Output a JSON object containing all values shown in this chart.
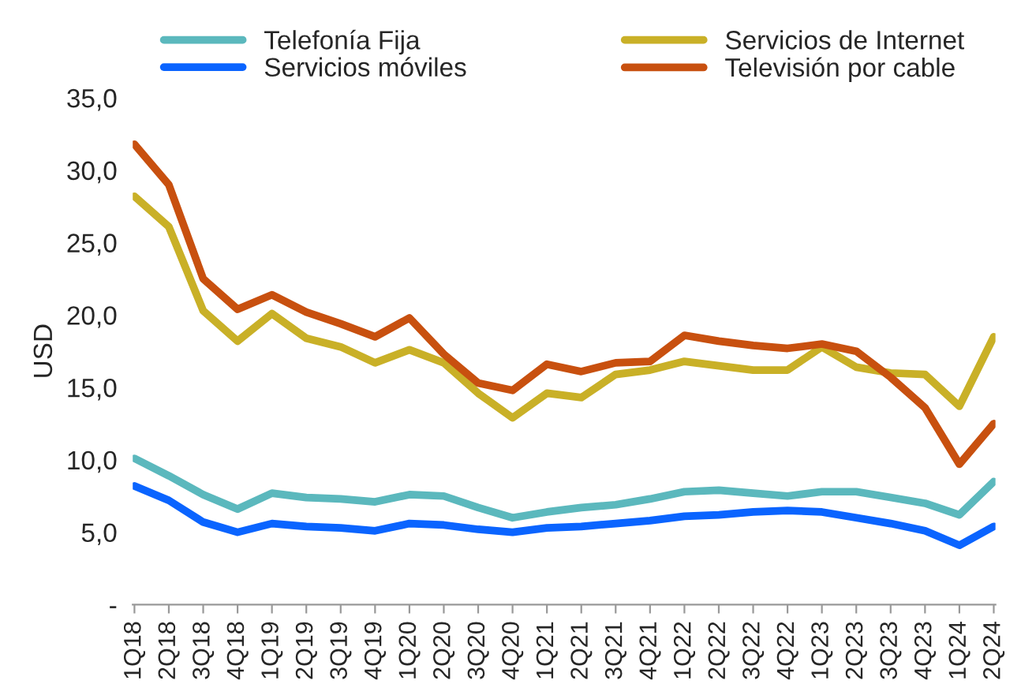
{
  "chart_data": {
    "type": "line",
    "ylabel": "USD",
    "categories": [
      "1Q18",
      "2Q18",
      "3Q18",
      "4Q18",
      "1Q19",
      "2Q19",
      "3Q19",
      "4Q19",
      "1Q20",
      "2Q20",
      "3Q20",
      "4Q20",
      "1Q21",
      "2Q21",
      "3Q21",
      "4Q21",
      "1Q22",
      "2Q22",
      "3Q22",
      "4Q22",
      "1Q23",
      "2Q23",
      "3Q23",
      "4Q23",
      "1Q24",
      "2Q24"
    ],
    "series": [
      {
        "name": "Telefonía Fija",
        "color": "#5bb8bd",
        "values": [
          10.1,
          8.9,
          7.6,
          6.6,
          7.7,
          7.4,
          7.3,
          7.1,
          7.6,
          7.5,
          6.7,
          6.0,
          6.4,
          6.7,
          6.9,
          7.3,
          7.8,
          7.9,
          7.7,
          7.5,
          7.8,
          7.8,
          7.4,
          7.0,
          6.2,
          8.5
        ]
      },
      {
        "name": "Servicios móviles",
        "color": "#0a64ff",
        "values": [
          8.2,
          7.2,
          5.7,
          5.0,
          5.6,
          5.4,
          5.3,
          5.1,
          5.6,
          5.5,
          5.2,
          5.0,
          5.3,
          5.4,
          5.6,
          5.8,
          6.1,
          6.2,
          6.4,
          6.5,
          6.4,
          6.0,
          5.6,
          5.1,
          4.1,
          5.4
        ]
      },
      {
        "name": "Servicios de Internet",
        "color": "#c9b027",
        "values": [
          28.2,
          26.1,
          20.3,
          18.2,
          20.1,
          18.4,
          17.8,
          16.7,
          17.6,
          16.7,
          14.6,
          12.9,
          14.6,
          14.3,
          15.9,
          16.2,
          16.8,
          16.5,
          16.2,
          16.2,
          17.8,
          16.4,
          16.0,
          15.9,
          13.7,
          18.5
        ]
      },
      {
        "name": "Televisión por cable",
        "color": "#c8500f",
        "values": [
          31.8,
          29.0,
          22.5,
          20.4,
          21.4,
          20.2,
          19.4,
          18.5,
          19.8,
          17.3,
          15.3,
          14.8,
          16.6,
          16.1,
          16.7,
          16.8,
          18.6,
          18.2,
          17.9,
          17.7,
          18.0,
          17.5,
          15.7,
          13.6,
          9.7,
          12.5
        ]
      }
    ],
    "ylim": [
      0,
      35
    ],
    "yticks": [
      {
        "value": 0,
        "label": "-"
      },
      {
        "value": 5,
        "label": "5,0"
      },
      {
        "value": 10,
        "label": "10,0"
      },
      {
        "value": 15,
        "label": "15,0"
      },
      {
        "value": 20,
        "label": "20,0"
      },
      {
        "value": 25,
        "label": "25,0"
      },
      {
        "value": 30,
        "label": "30,0"
      },
      {
        "value": 35,
        "label": "35,0"
      }
    ],
    "grid": false,
    "legend": "top",
    "marker": "none",
    "line_style": "solid"
  }
}
